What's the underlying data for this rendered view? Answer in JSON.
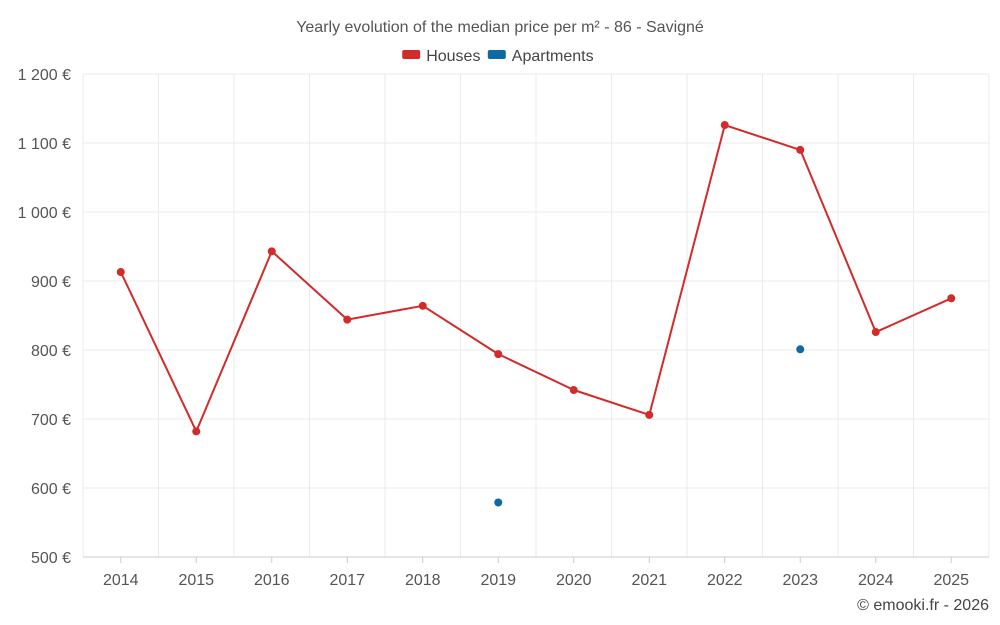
{
  "chart_data": {
    "type": "line",
    "title": "Yearly evolution of the median price per m² - 86 - Savigné",
    "categories": [
      "2014",
      "2015",
      "2016",
      "2017",
      "2018",
      "2019",
      "2020",
      "2021",
      "2022",
      "2023",
      "2024",
      "2025"
    ],
    "series": [
      {
        "name": "Houses",
        "color": "#d32a2a",
        "values": [
          913,
          682,
          943,
          844,
          864,
          794,
          742,
          706,
          1126,
          1090,
          826,
          875
        ]
      },
      {
        "name": "Apartments",
        "color": "#0e6aa0",
        "values": [
          null,
          null,
          null,
          null,
          null,
          579,
          null,
          null,
          null,
          801,
          null,
          null
        ]
      }
    ],
    "ylim": [
      500,
      1200
    ],
    "yticks": [
      500,
      600,
      700,
      800,
      900,
      1000,
      1100,
      1200
    ],
    "ytick_labels": [
      "500 €",
      "600 €",
      "700 €",
      "800 €",
      "900 €",
      "1 000 €",
      "1 100 €",
      "1 200 €"
    ],
    "xlabel": "",
    "ylabel": "",
    "grid": true,
    "legend_position": "top-center"
  },
  "credit": "© emooki.fr - 2026"
}
